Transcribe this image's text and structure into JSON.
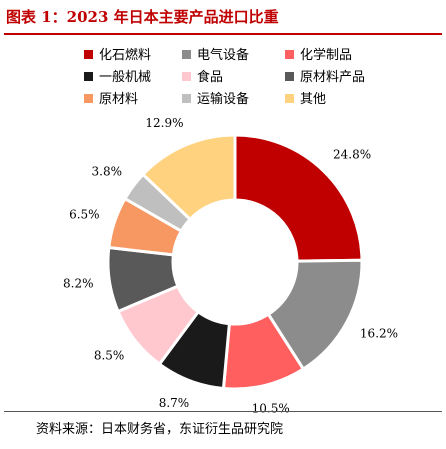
{
  "figure": {
    "title": "图表 1：2023 年日本主要产品进口比重",
    "source": "资料来源：日本财务省，东证衍生品研究院"
  },
  "chart_data": {
    "type": "pie",
    "variant": "donut",
    "title": "",
    "legend_position": "top",
    "unit": "%",
    "series": [
      {
        "name": "化石燃料",
        "value": 24.8,
        "label": "24.8%",
        "color": "#c00000"
      },
      {
        "name": "电气设备",
        "value": 16.2,
        "label": "16.2%",
        "color": "#8c8c8c"
      },
      {
        "name": "化学制品",
        "value": 10.5,
        "label": "10.5%",
        "color": "#ff5f5f"
      },
      {
        "name": "一般机械",
        "value": 8.7,
        "label": "8.7%",
        "color": "#1a1a1a"
      },
      {
        "name": "食品",
        "value": 8.5,
        "label": "8.5%",
        "color": "#ffc7ce"
      },
      {
        "name": "原材料产品",
        "value": 8.2,
        "label": "8.2%",
        "color": "#595959"
      },
      {
        "name": "原材料",
        "value": 6.5,
        "label": "6.5%",
        "color": "#f79862"
      },
      {
        "name": "运输设备",
        "value": 3.8,
        "label": "3.8%",
        "color": "#bfbfbf"
      },
      {
        "name": "其他",
        "value": 12.9,
        "label": "12.9%",
        "color": "#ffd27f"
      }
    ]
  }
}
